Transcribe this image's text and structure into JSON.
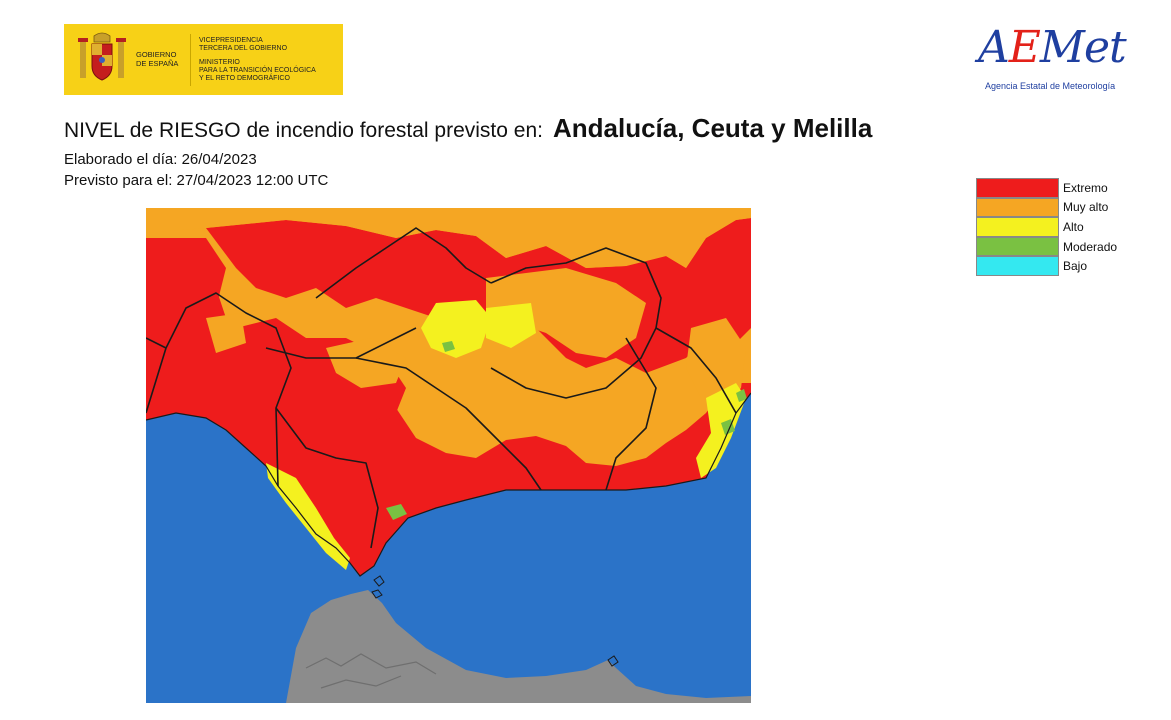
{
  "government_logo": {
    "name_line1": "GOBIERNO",
    "name_line2": "DE ESPAÑA",
    "dept_line1": "VICEPRESIDENCIA",
    "dept_line2": "TERCERA DEL GOBIERNO",
    "dept_line3": "MINISTERIO",
    "dept_line4": "PARA LA TRANSICIÓN ECOLÓGICA",
    "dept_line5": "Y EL RETO DEMOGRÁFICO"
  },
  "aemet_logo": {
    "wordmark_a": "A",
    "wordmark_e": "E",
    "wordmark_rest": "Met",
    "subtitle": "Agencia Estatal de Meteorología"
  },
  "title": {
    "prefix": "NIVEL de RIESGO de incendio forestal previsto en:",
    "region": "Andalucía, Ceuta y Melilla"
  },
  "meta": {
    "elaborated": "Elaborado el día: 26/04/2023",
    "forecast": "Previsto para el: 27/04/2023 12:00 UTC"
  },
  "legend": [
    {
      "label": "Extremo",
      "color": "#ee1c1c"
    },
    {
      "label": "Muy alto",
      "color": "#f5a623"
    },
    {
      "label": "Alto",
      "color": "#f4f11f"
    },
    {
      "label": "Moderado",
      "color": "#7ac142"
    },
    {
      "label": "Bajo",
      "color": "#34e8f0"
    }
  ],
  "map_colors": {
    "sea": "#2b73c8",
    "africa_land": "#8c8c8c",
    "border": "#1a1a1a"
  }
}
